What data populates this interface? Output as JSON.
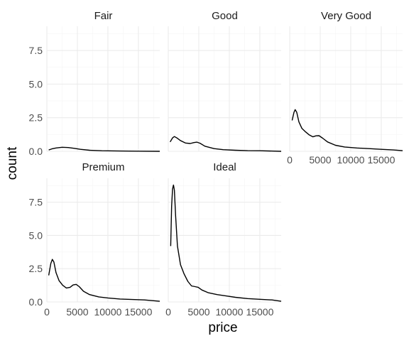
{
  "chart_data": {
    "type": "line",
    "xlabel": "price",
    "ylabel": "count",
    "xlim": [
      0,
      18500
    ],
    "ylim": [
      0,
      9.3
    ],
    "x_ticks": [
      0,
      5000,
      10000,
      15000
    ],
    "x_tick_labels": [
      "0",
      "5000",
      "10000",
      "15000"
    ],
    "y_ticks": [
      0,
      2.5,
      5,
      7.5
    ],
    "y_tick_labels": [
      "0.0",
      "2.5",
      "5.0",
      "7.5"
    ],
    "grid": true,
    "panels": [
      {
        "name": "Fair",
        "points": [
          [
            300,
            0.1
          ],
          [
            800,
            0.18
          ],
          [
            1500,
            0.25
          ],
          [
            2500,
            0.3
          ],
          [
            3500,
            0.28
          ],
          [
            4500,
            0.22
          ],
          [
            5500,
            0.15
          ],
          [
            7000,
            0.08
          ],
          [
            9000,
            0.04
          ],
          [
            12000,
            0.02
          ],
          [
            15000,
            0.01
          ],
          [
            18500,
            0.0
          ]
        ]
      },
      {
        "name": "Good",
        "points": [
          [
            300,
            0.7
          ],
          [
            700,
            1.0
          ],
          [
            1000,
            1.1
          ],
          [
            1400,
            1.0
          ],
          [
            2000,
            0.8
          ],
          [
            2800,
            0.62
          ],
          [
            3600,
            0.58
          ],
          [
            4200,
            0.65
          ],
          [
            4700,
            0.68
          ],
          [
            5200,
            0.6
          ],
          [
            6000,
            0.38
          ],
          [
            7500,
            0.2
          ],
          [
            9000,
            0.12
          ],
          [
            11000,
            0.08
          ],
          [
            13000,
            0.05
          ],
          [
            15000,
            0.04
          ],
          [
            18500,
            0.0
          ]
        ]
      },
      {
        "name": "Very Good",
        "points": [
          [
            400,
            2.3
          ],
          [
            700,
            2.9
          ],
          [
            900,
            3.1
          ],
          [
            1150,
            2.9
          ],
          [
            1500,
            2.2
          ],
          [
            2000,
            1.7
          ],
          [
            2600,
            1.45
          ],
          [
            3200,
            1.22
          ],
          [
            3800,
            1.08
          ],
          [
            4300,
            1.15
          ],
          [
            4800,
            1.16
          ],
          [
            5400,
            0.98
          ],
          [
            6200,
            0.7
          ],
          [
            7500,
            0.45
          ],
          [
            9000,
            0.32
          ],
          [
            11000,
            0.25
          ],
          [
            13000,
            0.2
          ],
          [
            15000,
            0.15
          ],
          [
            17000,
            0.1
          ],
          [
            18500,
            0.05
          ]
        ]
      },
      {
        "name": "Premium",
        "points": [
          [
            300,
            2.0
          ],
          [
            650,
            2.9
          ],
          [
            900,
            3.2
          ],
          [
            1150,
            3.0
          ],
          [
            1500,
            2.2
          ],
          [
            2000,
            1.6
          ],
          [
            2600,
            1.25
          ],
          [
            3200,
            1.05
          ],
          [
            3800,
            1.1
          ],
          [
            4300,
            1.28
          ],
          [
            4800,
            1.32
          ],
          [
            5300,
            1.15
          ],
          [
            6000,
            0.8
          ],
          [
            7000,
            0.55
          ],
          [
            8500,
            0.38
          ],
          [
            10000,
            0.3
          ],
          [
            12000,
            0.22
          ],
          [
            14000,
            0.18
          ],
          [
            16000,
            0.15
          ],
          [
            18500,
            0.05
          ]
        ]
      },
      {
        "name": "Ideal",
        "points": [
          [
            400,
            4.2
          ],
          [
            550,
            7.2
          ],
          [
            700,
            8.5
          ],
          [
            850,
            8.8
          ],
          [
            1000,
            8.4
          ],
          [
            1200,
            6.5
          ],
          [
            1500,
            4.2
          ],
          [
            2000,
            2.8
          ],
          [
            2600,
            2.1
          ],
          [
            3200,
            1.55
          ],
          [
            3800,
            1.2
          ],
          [
            4400,
            1.15
          ],
          [
            4900,
            1.1
          ],
          [
            5500,
            0.9
          ],
          [
            6500,
            0.7
          ],
          [
            8000,
            0.55
          ],
          [
            9500,
            0.45
          ],
          [
            11000,
            0.35
          ],
          [
            13000,
            0.25
          ],
          [
            15000,
            0.2
          ],
          [
            17000,
            0.15
          ],
          [
            18500,
            0.05
          ]
        ]
      }
    ]
  }
}
